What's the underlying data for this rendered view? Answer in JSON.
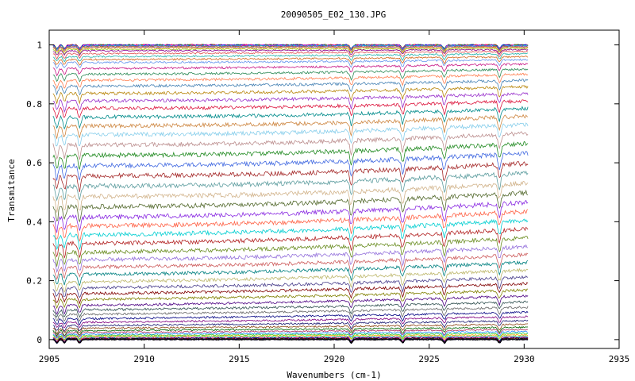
{
  "chart_data": {
    "type": "line",
    "title": "20090505_E02_130.JPG",
    "xlabel": "Wavenumbers (cm-1)",
    "ylabel": "Transmitance",
    "xlim": [
      2905,
      2935
    ],
    "ylim": [
      -0.03,
      1.05
    ],
    "xticks": [
      "2905",
      "2910",
      "2915",
      "2920",
      "2925",
      "2930",
      "2935"
    ],
    "yticks": [
      "0",
      "0.2",
      "0.4",
      "0.6",
      "0.8",
      "1"
    ],
    "x_range_of_data": [
      2905.2,
      2930.2
    ],
    "legend": "none",
    "grid": false,
    "series_count": 64,
    "series_baseline_start": [
      1.0,
      1.0,
      0.999,
      0.998,
      0.997,
      0.995,
      0.992,
      0.99,
      0.985,
      0.98,
      0.97,
      0.96,
      0.95,
      0.94,
      0.92,
      0.9,
      0.88,
      0.86,
      0.835,
      0.81,
      0.785,
      0.755,
      0.725,
      0.695,
      0.66,
      0.625,
      0.59,
      0.555,
      0.52,
      0.485,
      0.45,
      0.415,
      0.385,
      0.355,
      0.325,
      0.295,
      0.27,
      0.245,
      0.22,
      0.195,
      0.175,
      0.155,
      0.135,
      0.115,
      0.1,
      0.085,
      0.07,
      0.058,
      0.047,
      0.038,
      0.03,
      0.024,
      0.018,
      0.014,
      0.011,
      0.008,
      0.006,
      0.004,
      0.003,
      0.002,
      0.001,
      0.0005,
      0.0002,
      0.0
    ],
    "series_baseline_end": [
      1.0,
      1.0,
      0.999,
      0.998,
      0.997,
      0.995,
      0.993,
      0.991,
      0.988,
      0.984,
      0.978,
      0.97,
      0.96,
      0.95,
      0.935,
      0.918,
      0.9,
      0.88,
      0.858,
      0.835,
      0.81,
      0.785,
      0.758,
      0.73,
      0.7,
      0.665,
      0.632,
      0.598,
      0.565,
      0.53,
      0.498,
      0.465,
      0.435,
      0.405,
      0.375,
      0.345,
      0.315,
      0.288,
      0.262,
      0.236,
      0.212,
      0.19,
      0.168,
      0.148,
      0.128,
      0.11,
      0.093,
      0.078,
      0.064,
      0.052,
      0.042,
      0.034,
      0.027,
      0.021,
      0.016,
      0.012,
      0.009,
      0.006,
      0.004,
      0.003,
      0.002,
      0.001,
      0.0005,
      0.0
    ],
    "colors": [
      "#ff0000",
      "#008000",
      "#0000ff",
      "#ff00ff",
      "#00bfbf",
      "#a0522d",
      "#7b68ee",
      "#ff8c00",
      "#9acd32",
      "#8b008b",
      "#e05050",
      "#20b2aa",
      "#d2691e",
      "#6495ed",
      "#c71585",
      "#2e8b57",
      "#ff7f50",
      "#4682b4",
      "#b8860b",
      "#9932cc",
      "#dc143c",
      "#008b8b",
      "#cd853f",
      "#87ceeb",
      "#bc8f8f",
      "#228b22",
      "#4169e1",
      "#a52a2a",
      "#5f9ea0",
      "#d2b48c",
      "#556b2f",
      "#8a2be2",
      "#ff6347",
      "#00ced1",
      "#b22222",
      "#6b8e23",
      "#9370db",
      "#cd5c5c",
      "#008080",
      "#bdb76b",
      "#483d8b",
      "#800000",
      "#808000",
      "#4b0082",
      "#2f4f4f",
      "#696969",
      "#000080",
      "#800080",
      "#191970",
      "#8b4513",
      "#006400",
      "#b03060",
      "#1e90ff",
      "#32cd32",
      "#ffa500",
      "#00fa9a",
      "#ff1493",
      "#00008b",
      "#000000",
      "#8b0000",
      "#003300",
      "#330033",
      "#000033",
      "#000000"
    ],
    "features_cm1": [
      2905.4,
      2905.8,
      2906.6,
      2920.9,
      2923.6,
      2925.8,
      2928.7
    ]
  }
}
